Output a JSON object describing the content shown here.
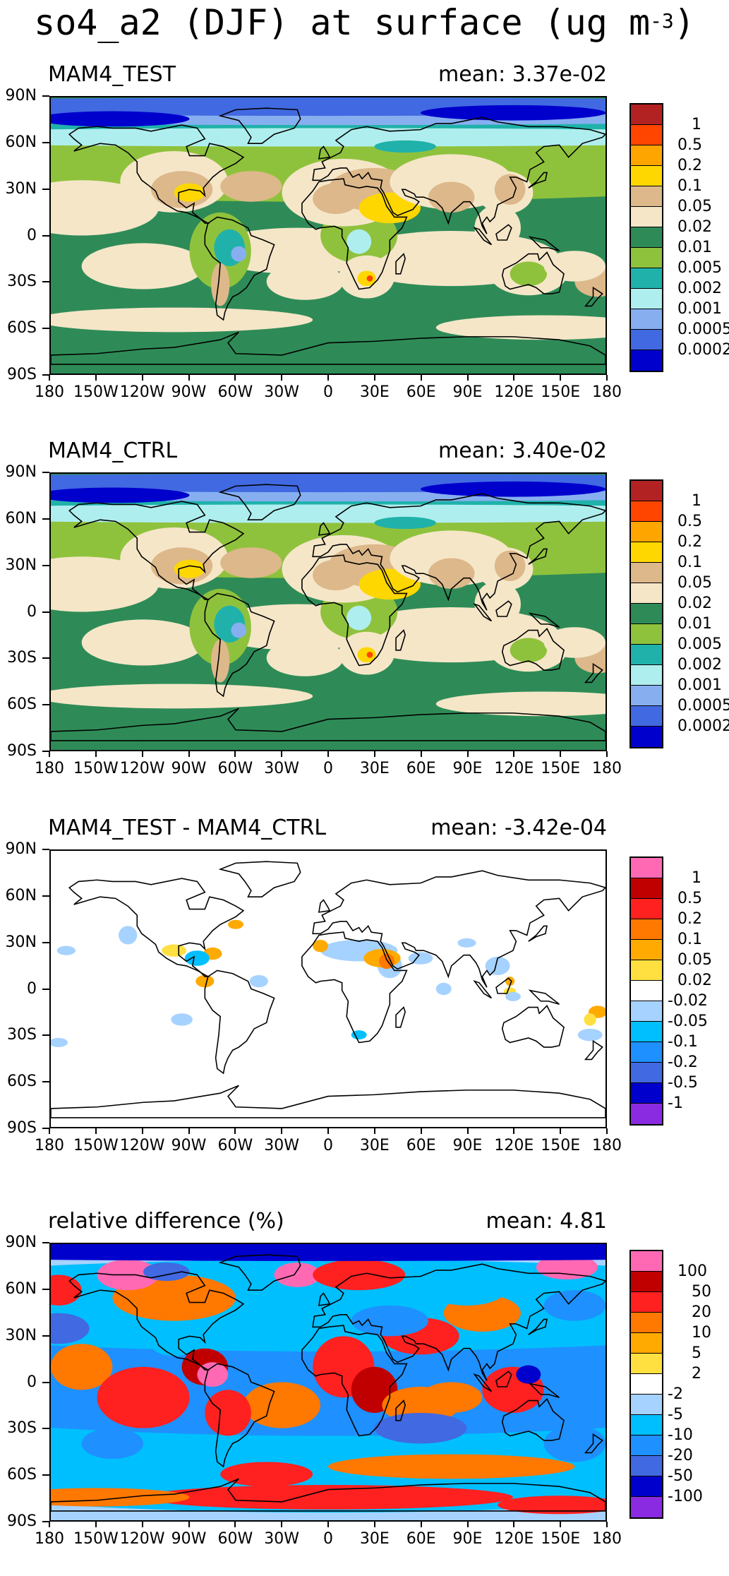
{
  "figure": {
    "title_main": "so4_a2 (DJF) at surface (ug m",
    "title_sup": "-3",
    "title_end": ")"
  },
  "axes": {
    "lat_ticks": [
      "90N",
      "60N",
      "30N",
      "0",
      "30S",
      "60S",
      "90S"
    ],
    "lon_ticks": [
      "180",
      "150W",
      "120W",
      "90W",
      "60W",
      "30W",
      "0",
      "30E",
      "60E",
      "90E",
      "120E",
      "150E",
      "180"
    ]
  },
  "panels": [
    {
      "title": "MAM4_TEST",
      "mean": "mean: 3.37e-02",
      "style": "conc",
      "colorbar_labels": [
        "1",
        "0.5",
        "0.2",
        "0.1",
        "0.05",
        "0.02",
        "0.01",
        "0.005",
        "0.002",
        "0.001",
        "0.0005",
        "0.0002"
      ],
      "colorbar_colors": [
        "#b22222",
        "#ff4500",
        "#ffa500",
        "#ffd700",
        "#ddb88a",
        "#f5e6c8",
        "#2e8b57",
        "#8fc23c",
        "#20b2aa",
        "#afeeee",
        "#87aff0",
        "#4169e1",
        "#0000cd"
      ]
    },
    {
      "title": "MAM4_CTRL",
      "mean": "mean: 3.40e-02",
      "style": "conc",
      "colorbar_labels": [
        "1",
        "0.5",
        "0.2",
        "0.1",
        "0.05",
        "0.02",
        "0.01",
        "0.005",
        "0.002",
        "0.001",
        "0.0005",
        "0.0002"
      ],
      "colorbar_colors": [
        "#b22222",
        "#ff4500",
        "#ffa500",
        "#ffd700",
        "#ddb88a",
        "#f5e6c8",
        "#2e8b57",
        "#8fc23c",
        "#20b2aa",
        "#afeeee",
        "#87aff0",
        "#4169e1",
        "#0000cd"
      ]
    },
    {
      "title": "MAM4_TEST - MAM4_CTRL",
      "mean": "mean: -3.42e-04",
      "style": "diff",
      "colorbar_labels": [
        "1",
        "0.5",
        "0.2",
        "0.1",
        "0.05",
        "0.02",
        "-0.02",
        "-0.05",
        "-0.1",
        "-0.2",
        "-0.5",
        "-1"
      ],
      "colorbar_colors": [
        "#ff69b4",
        "#c00000",
        "#ff2020",
        "#ff7800",
        "#ffaa00",
        "#ffe040",
        "#ffffff",
        "#a6d2ff",
        "#00bfff",
        "#1e90ff",
        "#4169e1",
        "#0000cd",
        "#8a2be2"
      ]
    },
    {
      "title": "relative difference (%)",
      "mean": "mean:   4.81",
      "style": "rel",
      "colorbar_labels": [
        "100",
        "50",
        "20",
        "10",
        "5",
        "2",
        "-2",
        "-5",
        "-10",
        "-20",
        "-50",
        "-100"
      ],
      "colorbar_colors": [
        "#ff69b4",
        "#c00000",
        "#ff2020",
        "#ff7800",
        "#ffaa00",
        "#ffe040",
        "#ffffff",
        "#a6d2ff",
        "#00bfff",
        "#1e90ff",
        "#4169e1",
        "#0000cd",
        "#8a2be2"
      ]
    }
  ],
  "chart_data": {
    "type": "heatmap",
    "title": "so4_a2 (DJF) at surface (ug m-3)",
    "xlim": [
      -180,
      180
    ],
    "ylim": [
      -90,
      90
    ],
    "grid": false,
    "legend": "colorbar-right",
    "panels": [
      {
        "name": "MAM4_TEST",
        "mean": 0.0337
      },
      {
        "name": "MAM4_CTRL",
        "mean": 0.034
      },
      {
        "name": "MAM4_TEST - MAM4_CTRL",
        "mean": -0.000342
      },
      {
        "name": "relative difference (%)",
        "mean": 4.81
      }
    ]
  }
}
